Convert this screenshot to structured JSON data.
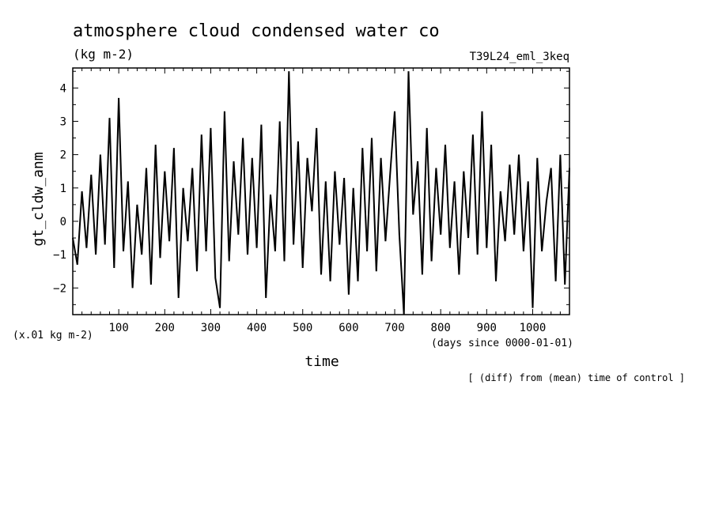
{
  "chart_data": {
    "type": "line",
    "title": "atmosphere cloud condensed water co",
    "units": "(kg m-2)",
    "experiment": "T39L24_eml_3keq",
    "ylabel": "gt_cldw_anm",
    "yunits": "(x.01 kg m-2)",
    "xlabel": "time",
    "xunits": "(days since 0000-01-01)",
    "note": "[ (diff) from (mean) time of control ]",
    "xlim": [
      0,
      1080
    ],
    "ylim": [
      -2.8,
      4.6
    ],
    "xticks": [
      100,
      200,
      300,
      400,
      500,
      600,
      700,
      800,
      900,
      1000
    ],
    "xtick_labels": [
      "100",
      "200",
      "300",
      "400",
      "500",
      "600",
      "700",
      "800",
      "900",
      "1000"
    ],
    "yticks": [
      -2,
      -1,
      0,
      1,
      2,
      3,
      4
    ],
    "ytick_labels": [
      "−2",
      "−1",
      "0",
      "1",
      "2",
      "3",
      "4"
    ],
    "grid": false,
    "series": [
      {
        "x": [
          0,
          10,
          20,
          30,
          40,
          50,
          60,
          70,
          80,
          90,
          100,
          110,
          120,
          130,
          140,
          150,
          160,
          170,
          180,
          190,
          200,
          210,
          220,
          230,
          240,
          250,
          260,
          270,
          280,
          290,
          300,
          310,
          320,
          330,
          340,
          350,
          360,
          370,
          380,
          390,
          400,
          410,
          420,
          430,
          440,
          450,
          460,
          470,
          480,
          490,
          500,
          510,
          520,
          530,
          540,
          550,
          560,
          570,
          580,
          590,
          600,
          610,
          620,
          630,
          640,
          650,
          660,
          670,
          680,
          690,
          700,
          710,
          720,
          730,
          740,
          750,
          760,
          770,
          780,
          790,
          800,
          810,
          820,
          830,
          840,
          850,
          860,
          870,
          880,
          890,
          900,
          910,
          920,
          930,
          940,
          950,
          960,
          970,
          980,
          990,
          1000,
          1010,
          1020,
          1030,
          1040,
          1050,
          1060,
          1070,
          1080
        ],
        "y": [
          -0.5,
          -1.3,
          0.9,
          -0.8,
          1.4,
          -1.0,
          2.0,
          -0.7,
          3.1,
          -1.4,
          3.7,
          -0.9,
          1.2,
          -2.0,
          0.5,
          -1.0,
          1.6,
          -1.9,
          2.3,
          -1.1,
          1.5,
          -0.6,
          2.2,
          -2.3,
          1.0,
          -0.6,
          1.6,
          -1.5,
          2.6,
          -0.9,
          2.8,
          -1.7,
          -2.6,
          3.3,
          -1.2,
          1.8,
          -0.4,
          2.5,
          -1.0,
          1.9,
          -0.8,
          2.9,
          -2.3,
          0.8,
          -0.9,
          3.0,
          -1.2,
          4.5,
          -0.7,
          2.4,
          -1.4,
          1.9,
          0.3,
          2.8,
          -1.6,
          1.2,
          -1.8,
          1.5,
          -0.7,
          1.3,
          -2.2,
          1.0,
          -1.8,
          2.2,
          -0.9,
          2.5,
          -1.5,
          1.9,
          -0.6,
          1.4,
          3.3,
          -0.4,
          -2.8,
          4.5,
          0.2,
          1.8,
          -1.6,
          2.8,
          -1.2,
          1.6,
          -0.4,
          2.3,
          -0.8,
          1.2,
          -1.6,
          1.5,
          -0.5,
          2.6,
          -1.0,
          3.3,
          -0.8,
          2.3,
          -1.8,
          0.9,
          -0.6,
          1.7,
          -0.4,
          2.0,
          -0.9,
          1.2,
          -2.6,
          1.9,
          -0.9,
          0.6,
          1.6,
          -1.8,
          2.0,
          -1.9,
          1.6
        ]
      }
    ]
  }
}
